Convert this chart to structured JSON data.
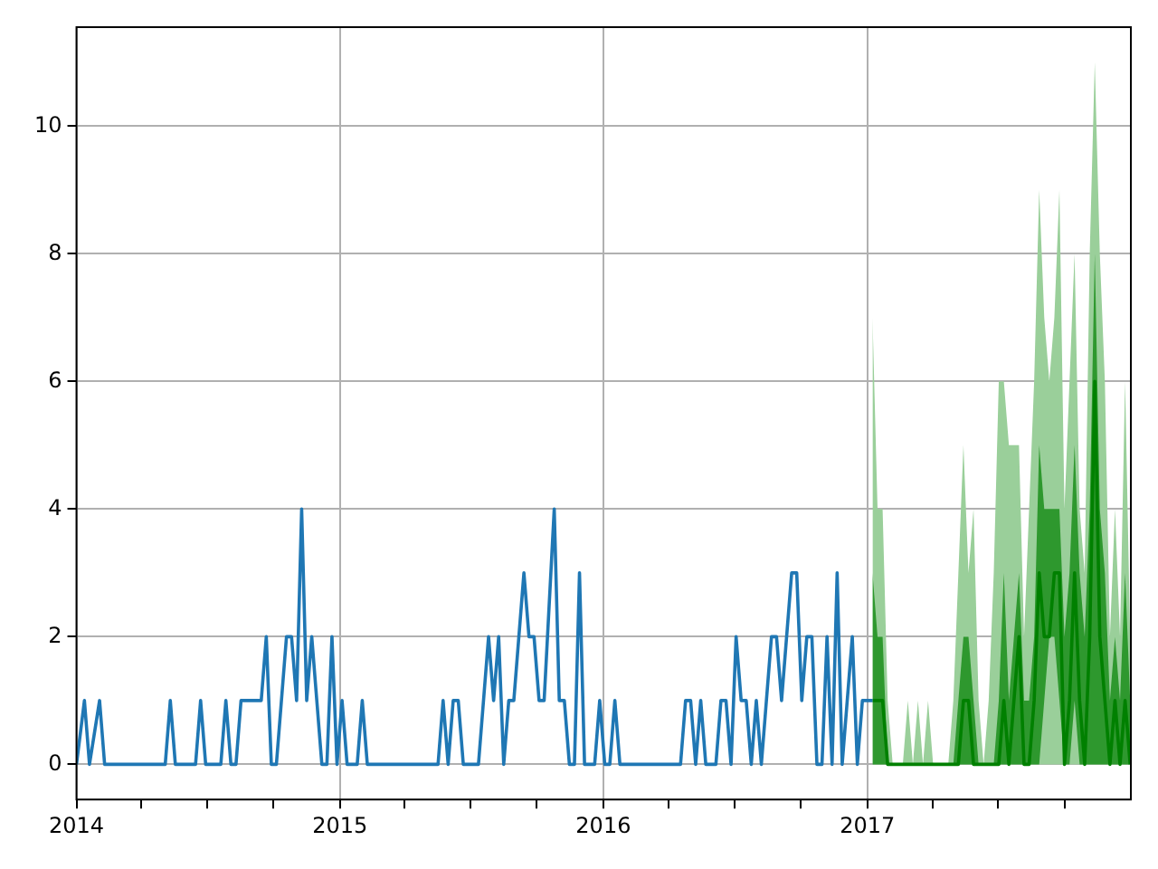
{
  "chart_data": {
    "type": "line",
    "xlim": [
      "2014-01-01",
      "2018-01-01"
    ],
    "xticks": [
      {
        "value": "2014-01-01",
        "label": "2014"
      },
      {
        "value": "2014-04-01",
        "label": null
      },
      {
        "value": "2014-07-01",
        "label": null
      },
      {
        "value": "2014-10-01",
        "label": null
      },
      {
        "value": "2015-01-01",
        "label": "2015"
      },
      {
        "value": "2015-04-01",
        "label": null
      },
      {
        "value": "2015-07-01",
        "label": null
      },
      {
        "value": "2015-10-01",
        "label": null
      },
      {
        "value": "2016-01-01",
        "label": "2016"
      },
      {
        "value": "2016-04-01",
        "label": null
      },
      {
        "value": "2016-07-01",
        "label": null
      },
      {
        "value": "2016-10-01",
        "label": null
      },
      {
        "value": "2017-01-01",
        "label": "2017"
      },
      {
        "value": "2017-04-01",
        "label": null
      },
      {
        "value": "2017-07-01",
        "label": null
      },
      {
        "value": "2017-10-01",
        "label": null
      }
    ],
    "ylim": [
      -0.55,
      11.55
    ],
    "yticks": [
      0,
      2,
      4,
      6,
      8,
      10
    ],
    "grid": true,
    "marker": "none",
    "line_style": "solid",
    "series": [
      {
        "color": "#1f77b4",
        "x": [
          "2014-01-01",
          "2014-01-12",
          "2014-01-19",
          "2014-02-02",
          "2014-02-09",
          "2014-05-04",
          "2014-05-11",
          "2014-05-18",
          "2014-06-15",
          "2014-06-22",
          "2014-06-29",
          "2014-07-20",
          "2014-07-27",
          "2014-08-03",
          "2014-08-10",
          "2014-08-17",
          "2014-09-14",
          "2014-09-21",
          "2014-09-28",
          "2014-10-05",
          "2014-10-12",
          "2014-10-19",
          "2014-10-26",
          "2014-11-02",
          "2014-11-09",
          "2014-11-16",
          "2014-11-23",
          "2014-11-30",
          "2014-12-07",
          "2014-12-14",
          "2014-12-21",
          "2014-12-28",
          "2015-01-04",
          "2015-01-11",
          "2015-01-25",
          "2015-02-01",
          "2015-02-08",
          "2015-05-17",
          "2015-05-24",
          "2015-05-31",
          "2015-06-07",
          "2015-06-14",
          "2015-06-21",
          "2015-07-12",
          "2015-07-26",
          "2015-08-02",
          "2015-08-09",
          "2015-08-16",
          "2015-08-23",
          "2015-08-30",
          "2015-09-13",
          "2015-09-20",
          "2015-09-27",
          "2015-10-04",
          "2015-10-11",
          "2015-10-25",
          "2015-11-01",
          "2015-11-08",
          "2015-11-15",
          "2015-11-22",
          "2015-11-29",
          "2015-12-06",
          "2015-12-20",
          "2015-12-27",
          "2016-01-03",
          "2016-01-10",
          "2016-01-17",
          "2016-01-24",
          "2016-04-17",
          "2016-04-24",
          "2016-05-01",
          "2016-05-08",
          "2016-05-15",
          "2016-05-22",
          "2016-06-05",
          "2016-06-12",
          "2016-06-19",
          "2016-06-26",
          "2016-07-03",
          "2016-07-10",
          "2016-07-17",
          "2016-07-24",
          "2016-07-31",
          "2016-08-07",
          "2016-08-14",
          "2016-08-21",
          "2016-08-28",
          "2016-09-04",
          "2016-09-18",
          "2016-09-25",
          "2016-10-02",
          "2016-10-09",
          "2016-10-16",
          "2016-10-23",
          "2016-10-30",
          "2016-11-06",
          "2016-11-13",
          "2016-11-20",
          "2016-11-27",
          "2016-12-04",
          "2016-12-11",
          "2016-12-18",
          "2016-12-25",
          "2017-01-08"
        ],
        "values": [
          0,
          1,
          0,
          1,
          0,
          0,
          1,
          0,
          0,
          1,
          0,
          0,
          1,
          0,
          0,
          1,
          1,
          2,
          0,
          0,
          1,
          2,
          2,
          1,
          4,
          1,
          2,
          1,
          0,
          0,
          2,
          0,
          1,
          0,
          0,
          1,
          0,
          0,
          1,
          0,
          1,
          1,
          0,
          0,
          2,
          1,
          2,
          0,
          1,
          1,
          3,
          2,
          2,
          1,
          1,
          4,
          1,
          1,
          0,
          0,
          3,
          0,
          0,
          1,
          0,
          0,
          1,
          0,
          0,
          1,
          1,
          0,
          1,
          0,
          0,
          1,
          1,
          0,
          2,
          1,
          1,
          0,
          1,
          0,
          1,
          2,
          2,
          1,
          3,
          3,
          1,
          2,
          2,
          0,
          0,
          2,
          0,
          3,
          0,
          1,
          2,
          0,
          1,
          1
        ]
      },
      {
        "type": "area",
        "color": "#9acf9a",
        "x": [
          "2017-01-08",
          "2017-01-15",
          "2017-01-22",
          "2017-01-29",
          "2017-02-05",
          "2017-02-12",
          "2017-02-19",
          "2017-02-26",
          "2017-03-05",
          "2017-03-12",
          "2017-03-19",
          "2017-03-26",
          "2017-04-02",
          "2017-04-09",
          "2017-04-16",
          "2017-04-23",
          "2017-04-30",
          "2017-05-07",
          "2017-05-14",
          "2017-05-21",
          "2017-05-28",
          "2017-06-04",
          "2017-06-11",
          "2017-06-18",
          "2017-06-25",
          "2017-07-02",
          "2017-07-09",
          "2017-07-16",
          "2017-07-23",
          "2017-07-30",
          "2017-08-06",
          "2017-08-13",
          "2017-08-20",
          "2017-08-27",
          "2017-09-03",
          "2017-09-10",
          "2017-09-17",
          "2017-09-24",
          "2017-10-01",
          "2017-10-08",
          "2017-10-15",
          "2017-10-22",
          "2017-10-29",
          "2017-11-05",
          "2017-11-12",
          "2017-11-19",
          "2017-11-26",
          "2017-12-03",
          "2017-12-10",
          "2017-12-17",
          "2017-12-24",
          "2017-12-31"
        ],
        "values": [
          7,
          4,
          4,
          1,
          0,
          0,
          0,
          1,
          0,
          1,
          0,
          1,
          0,
          0,
          0,
          0,
          1,
          3,
          5,
          3,
          4,
          1,
          0,
          1,
          3,
          6,
          6,
          5,
          5,
          5,
          2,
          4,
          6,
          9,
          7,
          6,
          7,
          9,
          4,
          6,
          8,
          4,
          3,
          8,
          11,
          8,
          6,
          2,
          4,
          2,
          6,
          2
        ]
      },
      {
        "color": "#008000",
        "x": [
          "2017-01-08",
          "2017-01-15",
          "2017-01-22",
          "2017-01-29",
          "2017-02-05",
          "2017-02-12",
          "2017-02-19",
          "2017-02-26",
          "2017-03-05",
          "2017-03-12",
          "2017-03-19",
          "2017-03-26",
          "2017-04-02",
          "2017-04-09",
          "2017-04-16",
          "2017-04-23",
          "2017-04-30",
          "2017-05-07",
          "2017-05-14",
          "2017-05-21",
          "2017-05-28",
          "2017-06-04",
          "2017-06-11",
          "2017-06-18",
          "2017-06-25",
          "2017-07-02",
          "2017-07-09",
          "2017-07-16",
          "2017-07-23",
          "2017-07-30",
          "2017-08-06",
          "2017-08-13",
          "2017-08-20",
          "2017-08-27",
          "2017-09-03",
          "2017-09-10",
          "2017-09-17",
          "2017-09-24",
          "2017-10-01",
          "2017-10-08",
          "2017-10-15",
          "2017-10-22",
          "2017-10-29",
          "2017-11-05",
          "2017-11-12",
          "2017-11-19",
          "2017-11-26",
          "2017-12-03",
          "2017-12-10",
          "2017-12-17",
          "2017-12-24",
          "2017-12-31"
        ],
        "values": [
          1,
          1,
          1,
          0,
          0,
          0,
          0,
          0,
          0,
          0,
          0,
          0,
          0,
          0,
          0,
          0,
          0,
          0,
          1,
          1,
          0,
          0,
          0,
          0,
          0,
          0,
          1,
          0,
          1,
          2,
          0,
          0,
          1,
          3,
          2,
          2,
          3,
          3,
          0,
          1,
          3,
          1,
          0,
          2,
          6,
          2,
          1,
          0,
          1,
          0,
          1,
          0
        ],
        "lower": [
          0,
          0,
          0,
          0,
          0,
          0,
          0,
          0,
          0,
          0,
          0,
          0,
          0,
          0,
          0,
          0,
          0,
          0,
          0,
          0,
          0,
          0,
          0,
          0,
          0,
          0,
          0,
          0,
          0,
          0,
          0,
          0,
          0,
          0,
          1,
          2,
          2,
          1,
          0,
          0,
          1,
          0,
          0,
          0,
          0,
          0,
          0,
          0,
          0,
          0,
          0,
          0
        ],
        "upper": [
          3,
          2,
          2,
          0,
          0,
          0,
          0,
          0,
          0,
          0,
          0,
          0,
          0,
          0,
          0,
          0,
          0,
          1,
          2,
          2,
          1,
          0,
          0,
          0,
          0,
          1,
          3,
          1,
          2,
          3,
          1,
          1,
          2,
          5,
          4,
          4,
          4,
          4,
          2,
          3,
          5,
          3,
          2,
          4,
          8,
          4,
          3,
          1,
          2,
          1,
          3,
          1
        ]
      }
    ]
  }
}
